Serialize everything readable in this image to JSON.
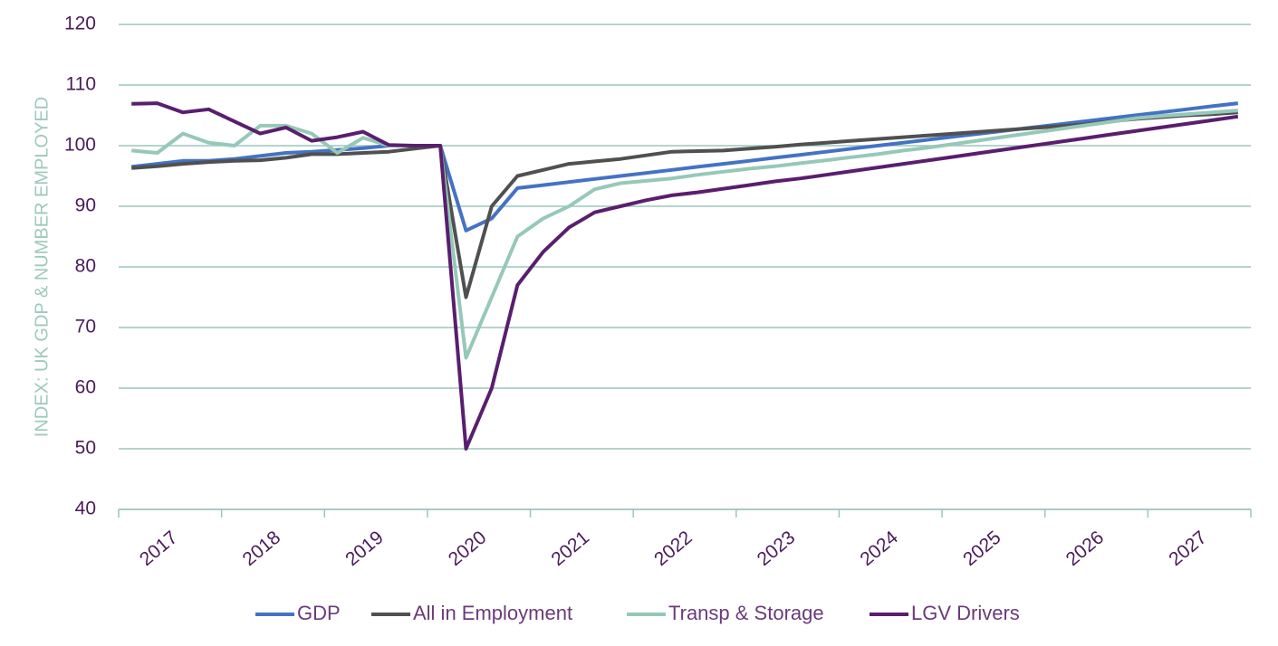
{
  "chart_data": {
    "type": "line",
    "y_axis_label": "INDEX:  UK GDP & NUMBER EMPLOYED",
    "categories": [
      "2017",
      null,
      null,
      null,
      "2018",
      null,
      null,
      null,
      "2019",
      null,
      null,
      null,
      "2020",
      null,
      null,
      null,
      "2021",
      null,
      null,
      null,
      "2022",
      null,
      null,
      null,
      "2023",
      null,
      null,
      null,
      "2024",
      null,
      null,
      null,
      "2025",
      null,
      null,
      null,
      "2026",
      null,
      null,
      null,
      "2027",
      null,
      null,
      null
    ],
    "series": [
      {
        "name": "GDP",
        "color": "#4472c4",
        "values": [
          96.5,
          97,
          97.5,
          97.5,
          97.8,
          98.3,
          98.8,
          99,
          99.3,
          99.6,
          100,
          100,
          100,
          86,
          88,
          93,
          93.5,
          94,
          94.5,
          95,
          95.5,
          96,
          96.5,
          97,
          97.5,
          98,
          98.5,
          99,
          99.5,
          100,
          100.5,
          101,
          101.5,
          102,
          102.5,
          103,
          103.5,
          104,
          104.5,
          105,
          105.5,
          106,
          106.5,
          107
        ]
      },
      {
        "name": "All in Employment",
        "color": "#505050",
        "values": [
          96.3,
          96.6,
          97,
          97.3,
          97.5,
          97.6,
          98,
          98.6,
          98.6,
          98.8,
          99,
          99.5,
          100,
          75,
          90,
          95,
          96,
          97,
          97.4,
          97.8,
          98.4,
          99,
          99.1,
          99.2,
          99.5,
          99.8,
          100.2,
          100.5,
          100.8,
          101.1,
          101.4,
          101.7,
          102,
          102.3,
          102.6,
          102.9,
          103.2,
          103.5,
          104,
          104.4,
          104.7,
          105,
          105.2,
          105.5
        ]
      },
      {
        "name": "Transp & Storage",
        "color": "#96c8b8",
        "values": [
          99.2,
          98.8,
          102,
          100.5,
          100,
          103.3,
          103.3,
          102,
          98.8,
          101.3,
          100,
          100,
          100,
          65,
          75,
          85,
          88,
          90,
          92.8,
          93.8,
          94.2,
          94.6,
          95.2,
          95.7,
          96.2,
          96.6,
          97.1,
          97.6,
          98.1,
          98.6,
          99.2,
          99.7,
          100.3,
          100.9,
          101.5,
          102.1,
          102.7,
          103.3,
          103.9,
          104.5,
          104.9,
          105.2,
          105.5,
          105.8
        ]
      },
      {
        "name": "LGV Drivers",
        "color": "#5a1e6e",
        "values": [
          106.9,
          107,
          105.5,
          106,
          104,
          102,
          103,
          100.8,
          101.4,
          102.3,
          100.1,
          100,
          100,
          50,
          60,
          77,
          82.5,
          86.5,
          89,
          90,
          91,
          91.8,
          92.3,
          92.9,
          93.5,
          94.1,
          94.6,
          95.2,
          95.8,
          96.4,
          97,
          97.6,
          98.2,
          98.8,
          99.4,
          100,
          100.6,
          101.2,
          101.8,
          102.4,
          103,
          103.6,
          104.2,
          104.8
        ]
      }
    ],
    "ylim": [
      40,
      120
    ],
    "yticks": [
      40,
      50,
      60,
      70,
      80,
      90,
      100,
      110,
      120
    ],
    "grid": true,
    "legend": "bottom"
  }
}
